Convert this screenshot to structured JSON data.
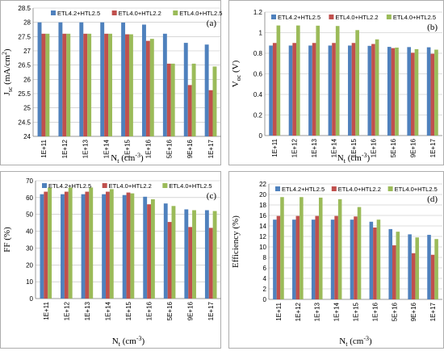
{
  "colors": {
    "ETL4.2+HTL2.5": "#4f81bd",
    "ETL4.0+HTL2.2": "#c0504d",
    "ETL4.0+HTL2.5": "#9bbb59"
  },
  "chart_data": [
    {
      "id": "a",
      "type": "bar",
      "panel_label": "(a)",
      "ylabel": "J_sc (mA/cm²)",
      "ylabel_main": "J",
      "ylabel_sub": "sc",
      "ylabel_rest": " (mA/cm",
      "ylabel_sup": "2",
      "ylabel_end": ")",
      "xlabel_main": "N",
      "xlabel_sub": "t",
      "xlabel_rest": " (cm",
      "xlabel_sup": "-3",
      "xlabel_end": ")",
      "ylim": [
        24,
        28.5
      ],
      "yticks": [
        "24",
        "24.5",
        "25",
        "25.5",
        "26",
        "26.5",
        "27",
        "27.5",
        "28",
        "28.5"
      ],
      "grid": true,
      "legend": "top",
      "categories": [
        "1E+11",
        "1E+12",
        "1E+13",
        "1E+14",
        "1E+15",
        "1E+16",
        "5E+16",
        "9E+16",
        "1E+17"
      ],
      "series": [
        {
          "name": "ETL4.2+HTL2.5",
          "values": [
            28.0,
            28.0,
            28.0,
            28.0,
            27.99,
            27.92,
            27.6,
            27.28,
            27.22
          ]
        },
        {
          "name": "ETL4.0+HTL2.2",
          "values": [
            27.6,
            27.6,
            27.6,
            27.6,
            27.58,
            27.35,
            26.55,
            25.8,
            25.62
          ]
        },
        {
          "name": "ETL4.0+HTL2.5",
          "values": [
            27.6,
            27.6,
            27.6,
            27.6,
            27.58,
            27.42,
            26.55,
            26.55,
            26.45
          ]
        }
      ]
    },
    {
      "id": "b",
      "type": "bar",
      "panel_label": "(b)",
      "ylabel": "V_oc (V)",
      "ylabel_main": "V",
      "ylabel_sub": "oc",
      "ylabel_rest": " (V)",
      "ylabel_sup": "",
      "ylabel_end": "",
      "xlabel_main": "N",
      "xlabel_sub": "t",
      "xlabel_rest": " (cm",
      "xlabel_sup": "-3",
      "xlabel_end": ")",
      "ylim": [
        0,
        1.2
      ],
      "yticks": [
        "0",
        "0.2",
        "0.4",
        "0.6",
        "0.8",
        "1",
        "1.2"
      ],
      "grid": true,
      "legend": "top",
      "categories": [
        "1E+11",
        "1E+12",
        "1E+13",
        "1E+14",
        "1E+15",
        "1E+16",
        "5E+16",
        "9E+16",
        "1E+17"
      ],
      "series": [
        {
          "name": "ETL4.2+HTL2.5",
          "values": [
            0.875,
            0.875,
            0.875,
            0.875,
            0.875,
            0.872,
            0.862,
            0.86,
            0.858
          ]
        },
        {
          "name": "ETL4.0+HTL2.2",
          "values": [
            0.9,
            0.9,
            0.9,
            0.9,
            0.9,
            0.89,
            0.85,
            0.805,
            0.795
          ]
        },
        {
          "name": "ETL4.0+HTL2.5",
          "values": [
            1.07,
            1.07,
            1.068,
            1.065,
            1.025,
            0.935,
            0.855,
            0.84,
            0.835
          ]
        }
      ]
    },
    {
      "id": "c",
      "type": "bar",
      "panel_label": "(c)",
      "ylabel": "FF (%)",
      "ylabel_main": "FF (%)",
      "ylabel_sub": "",
      "ylabel_rest": "",
      "ylabel_sup": "",
      "ylabel_end": "",
      "xlabel_main": "N",
      "xlabel_sub": "t",
      "xlabel_rest": " (cm",
      "xlabel_sup": "-3",
      "xlabel_end": ")",
      "ylim": [
        0,
        70
      ],
      "yticks": [
        "0",
        "10",
        "20",
        "30",
        "40",
        "50",
        "60",
        "70"
      ],
      "grid": true,
      "legend": "top",
      "categories": [
        "1E+11",
        "1E+12",
        "1E+13",
        "1E+14",
        "1E+15",
        "1E+16",
        "5E+16",
        "9E+16",
        "1E+17"
      ],
      "series": [
        {
          "name": "ETL4.2+HTL2.5",
          "values": [
            62,
            62,
            62,
            62,
            61.5,
            60.5,
            56.5,
            53,
            52.5
          ]
        },
        {
          "name": "ETL4.0+HTL2.2",
          "values": [
            63.5,
            63.5,
            63.5,
            63.5,
            63,
            56,
            45.5,
            42.5,
            42
          ]
        },
        {
          "name": "ETL4.0+HTL2.5",
          "values": [
            66,
            66,
            66,
            65,
            62.5,
            59,
            55,
            52.5,
            52
          ]
        }
      ]
    },
    {
      "id": "d",
      "type": "bar",
      "panel_label": "(d)",
      "ylabel": "Efficiency (%)",
      "ylabel_main": "Efficiency (%)",
      "ylabel_sub": "",
      "ylabel_rest": "",
      "ylabel_sup": "",
      "ylabel_end": "",
      "xlabel_main": "N",
      "xlabel_sub": "t",
      "xlabel_rest": " (cm",
      "xlabel_sup": "-3",
      "xlabel_end": ")",
      "ylim": [
        0,
        22
      ],
      "yticks": [
        "0",
        "2",
        "4",
        "6",
        "8",
        "10",
        "12",
        "14",
        "16",
        "18",
        "20",
        "22"
      ],
      "grid": true,
      "legend": "top",
      "categories": [
        "1E+11",
        "1E+12",
        "1E+13",
        "1E+14",
        "1E+15",
        "1E+16",
        "5E+16",
        "9E+16",
        "1E+17"
      ],
      "series": [
        {
          "name": "ETL4.2+HTL2.5",
          "values": [
            15.2,
            15.2,
            15.2,
            15.2,
            15.2,
            14.8,
            13.4,
            12.4,
            12.3
          ]
        },
        {
          "name": "ETL4.0+HTL2.2",
          "values": [
            15.9,
            15.9,
            15.9,
            15.9,
            15.8,
            13.7,
            10.3,
            8.8,
            8.5
          ]
        },
        {
          "name": "ETL4.0+HTL2.5",
          "values": [
            19.5,
            19.5,
            19.4,
            19.1,
            17.6,
            15.2,
            12.9,
            11.8,
            11.5
          ]
        }
      ]
    }
  ]
}
